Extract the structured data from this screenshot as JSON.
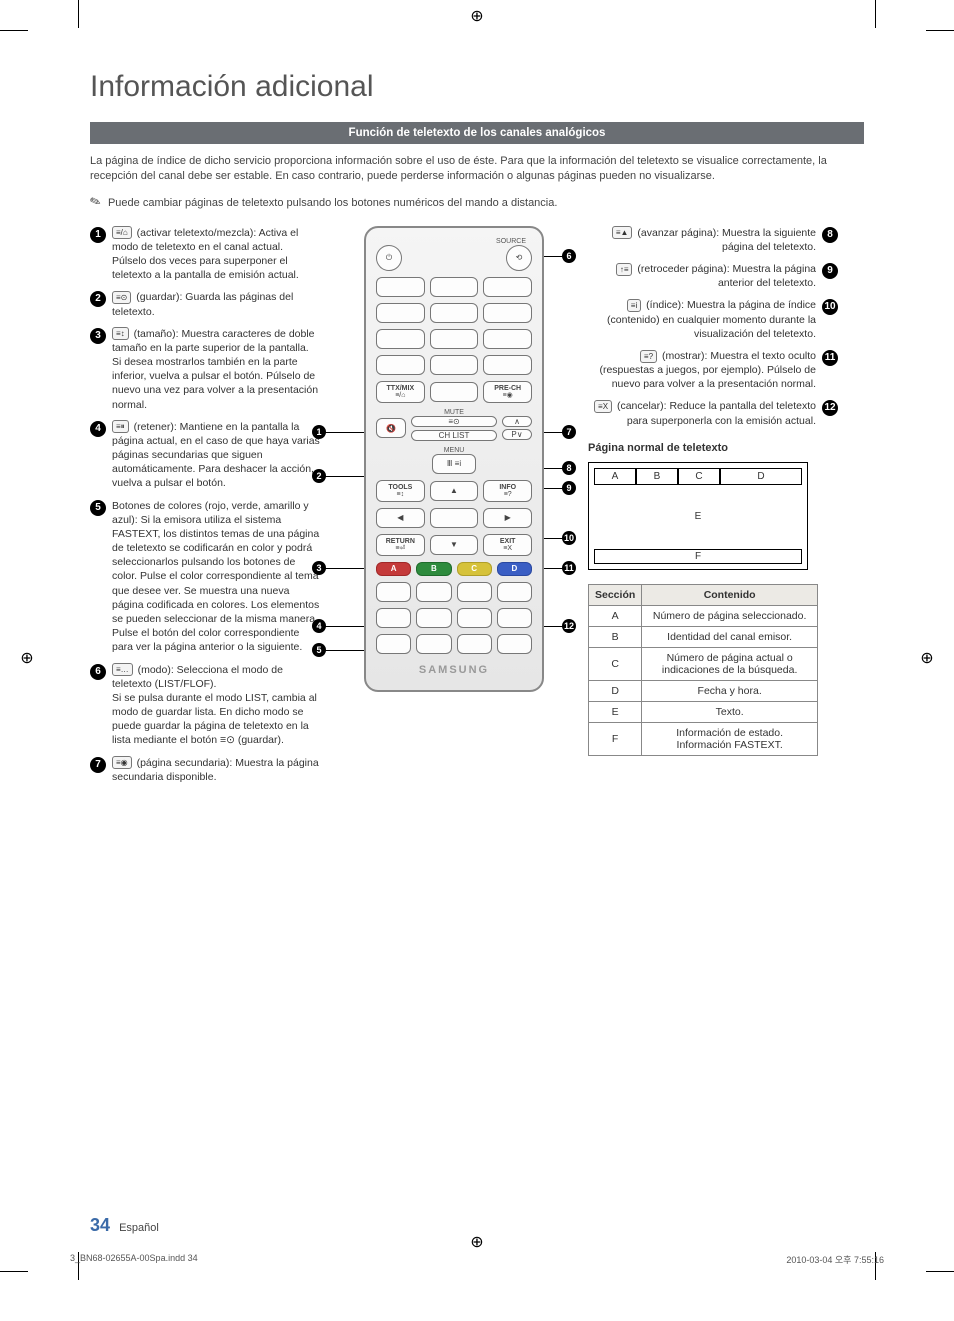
{
  "page_title": "Información adicional",
  "section_bar": "Función de teletexto de los canales analógicos",
  "intro": "La página de índice de dicho servicio proporciona información sobre el uso de éste. Para que la información del teletexto se visualice correctamente, la recepción del canal debe ser estable. En caso contrario, puede perderse información o algunas páginas pueden no visualizarse.",
  "note": "Puede cambiar páginas de teletexto pulsando los botones numéricos del mando a distancia.",
  "left_items": [
    {
      "n": "1",
      "icon": "≡/⌂",
      "text": "(activar teletexto/mezcla): Activa el modo de teletexto en el canal actual. Púlselo dos veces para superponer el teletexto a la pantalla de emisión actual."
    },
    {
      "n": "2",
      "icon": "≡⊙",
      "text": "(guardar): Guarda las páginas del teletexto."
    },
    {
      "n": "3",
      "icon": "≡↕",
      "text": "(tamaño): Muestra caracteres de doble tamaño en la parte superior de la pantalla. Si desea mostrarlos también en la parte inferior, vuelva a pulsar el botón. Púlselo de nuevo una vez para volver a la presentación normal."
    },
    {
      "n": "4",
      "icon": "≡⏸",
      "text": "(retener): Mantiene en la pantalla la página actual, en el caso de que haya varias páginas secundarias que siguen automáticamente. Para deshacer la acción, vuelva a pulsar el botón."
    },
    {
      "n": "5",
      "icon": "",
      "text": "Botones de colores (rojo, verde, amarillo y azul): Si la emisora utiliza el sistema FASTEXT, los distintos temas de una página de teletexto se codificarán en color y podrá seleccionarlos pulsando los botones de color. Pulse el color correspondiente al tema que desee ver. Se muestra una nueva página codificada en colores. Los elementos se pueden seleccionar de la misma manera. Pulse el botón del color correspondiente para ver la página anterior o la siguiente."
    },
    {
      "n": "6",
      "icon": "≡…",
      "text": "(modo): Selecciona el modo de teletexto (LIST/FLOF).\nSi se pulsa durante el modo LIST, cambia al modo de guardar lista. En dicho modo se puede guardar la página de teletexto en la lista mediante el botón ≡⊙ (guardar)."
    },
    {
      "n": "7",
      "icon": "≡◉",
      "text": "(página secundaria): Muestra la página secundaria disponible."
    }
  ],
  "right_items": [
    {
      "n": "8",
      "icon": "≡▲",
      "text": "(avanzar página): Muestra la siguiente página del teletexto."
    },
    {
      "n": "9",
      "icon": "↑≡",
      "text": "(retroceder página): Muestra la página anterior del teletexto."
    },
    {
      "n": "10",
      "icon": "≡i",
      "text": "(índice): Muestra la página de índice (contenido) en cualquier momento durante la visualización del teletexto."
    },
    {
      "n": "11",
      "icon": "≡?",
      "text": "(mostrar): Muestra el texto oculto (respuestas a juegos, por ejemplo). Púlselo de nuevo para volver a la presentación normal."
    },
    {
      "n": "12",
      "icon": "≡X",
      "text": "(cancelar): Reduce la pantalla del teletexto para superponerla con la emisión actual."
    }
  ],
  "remote": {
    "source": "SOURCE",
    "ttx": "TTX/MIX",
    "prech": "PRE-CH",
    "mute": "MUTE",
    "chlist": "CH LIST",
    "p": "P",
    "menu": "MENU",
    "tools": "TOOLS",
    "info": "INFO",
    "return": "RETURN",
    "exit": "EXIT",
    "a": "A",
    "b": "B",
    "c": "C",
    "d": "D",
    "brand": "SAMSUNG"
  },
  "tlx_title": "Página normal de teletexto",
  "tlx_labels": {
    "a": "A",
    "b": "B",
    "c": "C",
    "d": "D",
    "e": "E",
    "f": "F"
  },
  "table": {
    "head_section": "Sección",
    "head_content": "Contenido",
    "rows": [
      {
        "s": "A",
        "c": "Número de página seleccionado."
      },
      {
        "s": "B",
        "c": "Identidad del canal emisor."
      },
      {
        "s": "C",
        "c": "Número de página actual o indicaciones de la búsqueda."
      },
      {
        "s": "D",
        "c": "Fecha y hora."
      },
      {
        "s": "E",
        "c": "Texto."
      },
      {
        "s": "F",
        "c": "Información de estado. Información FASTEXT."
      }
    ]
  },
  "page_number": "34",
  "page_lang": "Español",
  "footer_left": "3_BN68-02655A-00Spa.indd   34",
  "footer_right": "2010-03-04   오후 7:55:16"
}
